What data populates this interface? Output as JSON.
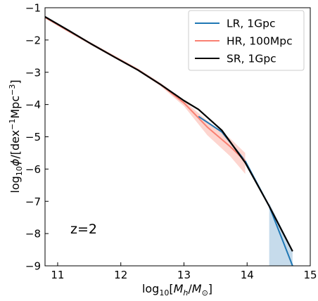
{
  "chart_data": {
    "type": "line",
    "xlabel": "log10[M_h/M_⊙]",
    "ylabel": "log10ϕ/[dex⁻¹Mpc⁻³]",
    "xlim": [
      10.8,
      15.0
    ],
    "ylim": [
      -9,
      -1
    ],
    "x_ticks": [
      11,
      12,
      13,
      14,
      15
    ],
    "y_ticks": [
      -1,
      -2,
      -3,
      -4,
      -5,
      -6,
      -7,
      -8,
      -9
    ],
    "x_tick_labels": [
      "11",
      "12",
      "13",
      "14",
      "15"
    ],
    "y_tick_labels": [
      "−1",
      "−2",
      "−3",
      "−4",
      "−5",
      "−6",
      "−7",
      "−8",
      "−9"
    ],
    "grid": false,
    "legend_position": "top-right",
    "annotation": "z=2",
    "series": [
      {
        "name": "LR, 1Gpc",
        "color": "#1f77b4",
        "x": [
          13.23,
          13.6,
          13.97,
          14.35,
          14.72
        ],
        "y": [
          -4.37,
          -4.85,
          -5.75,
          -7.15,
          -9.0
        ],
        "band": {
          "x": [
            14.35,
            14.72
          ],
          "upper": [
            -7.05,
            -8.5
          ],
          "lower": [
            -9.0,
            -9.0
          ],
          "color": "#c6dbeb"
        }
      },
      {
        "name": "HR, 100Mpc",
        "color": "#fa8072",
        "x": [
          10.8,
          11.17,
          11.53,
          11.9,
          12.27,
          12.63,
          13.0,
          13.37,
          13.73,
          13.97
        ],
        "y": [
          -1.3,
          -1.72,
          -2.12,
          -2.52,
          -2.92,
          -3.38,
          -3.95,
          -4.7,
          -5.3,
          -5.75
        ],
        "band": {
          "x": [
            10.8,
            11.17,
            11.53,
            11.9,
            12.27,
            12.63,
            13.0,
            13.37,
            13.73,
            13.97
          ],
          "upper": [
            -1.27,
            -1.68,
            -2.08,
            -2.48,
            -2.88,
            -3.33,
            -3.88,
            -4.5,
            -5.05,
            -5.5
          ],
          "lower": [
            -1.33,
            -1.76,
            -2.16,
            -2.56,
            -2.96,
            -3.43,
            -4.05,
            -4.95,
            -5.6,
            -6.15
          ],
          "color": "#fdd5cf"
        }
      },
      {
        "name": "SR, 1Gpc",
        "color": "#000000",
        "x": [
          10.8,
          11.17,
          11.53,
          11.9,
          12.27,
          12.63,
          13.0,
          13.23,
          13.6,
          13.97,
          14.35,
          14.72
        ],
        "y": [
          -1.28,
          -1.7,
          -2.12,
          -2.53,
          -2.93,
          -3.38,
          -3.88,
          -4.15,
          -4.8,
          -5.8,
          -7.15,
          -8.55
        ]
      }
    ]
  }
}
